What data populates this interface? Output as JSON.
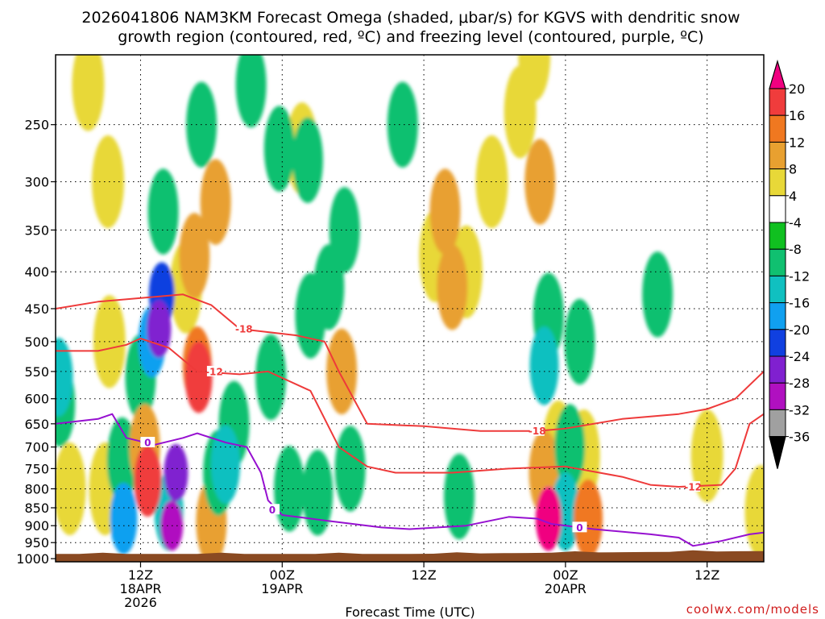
{
  "title": {
    "line1": "2026041806 NAM3KM Forecast Omega (shaded, μbar/s) for KGVS with dendritic snow",
    "line2": "growth region (contoured, red, ºC) and freezing level (contoured, purple, ºC)"
  },
  "credit": "coolwx.com/models",
  "colors": {
    "dendritic_contour": "#ee3a3a",
    "freezing_contour": "#9610d0",
    "ground": "#8a4a22",
    "frame": "#000000"
  },
  "chart_data": {
    "type": "heatmap",
    "title": "2026041806 NAM3KM Forecast Omega (shaded, μbar/s) for KGVS with dendritic snow growth region (contoured, red, ºC) and freezing level (contoured, purple, ºC)",
    "xlabel": "Forecast Time (UTC)",
    "ylabel": "",
    "y_axis": {
      "scale": "log-pressure",
      "ylim": [
        1000,
        200
      ],
      "tick_labels": [
        "250",
        "300",
        "350",
        "400",
        "450",
        "500",
        "550",
        "600",
        "650",
        "700",
        "750",
        "800",
        "850",
        "900",
        "950",
        "1000"
      ]
    },
    "x_axis": {
      "xlim_hours": [
        6,
        56
      ],
      "ticks": [
        {
          "hour": 12,
          "line1": "12Z",
          "line2": "18APR",
          "line3": "2026"
        },
        {
          "hour": 22,
          "line1": "00Z",
          "line2": "19APR",
          "line3": ""
        },
        {
          "hour": 32,
          "line1": "12Z",
          "line2": "",
          "line3": ""
        },
        {
          "hour": 42,
          "line1": "00Z",
          "line2": "20APR",
          "line3": ""
        },
        {
          "hour": 52,
          "line1": "12Z",
          "line2": "",
          "line3": ""
        }
      ]
    },
    "colorbar": {
      "labels": [
        "20",
        "16",
        "12",
        "8",
        "4",
        "-4",
        "-8",
        "-12",
        "-16",
        "-20",
        "-24",
        "-28",
        "-32",
        "-36"
      ],
      "colors": [
        "#f00080",
        "#f03c3c",
        "#f07820",
        "#e8a030",
        "#e8d838",
        "#ffffff",
        "#10c020",
        "#10c070",
        "#10c0c0",
        "#10a0f0",
        "#1040e0",
        "#8020d0",
        "#b010c0",
        "#a0a0a0",
        "#000000"
      ]
    },
    "omega_cells": [
      {
        "hour": 6.2,
        "p": 560,
        "omega": -12
      },
      {
        "hour": 6.3,
        "p": 610,
        "omega": -8
      },
      {
        "hour": 7.0,
        "p": 800,
        "omega": 4
      },
      {
        "hour": 8.3,
        "p": 220,
        "omega": 4
      },
      {
        "hour": 9.7,
        "p": 300,
        "omega": 4
      },
      {
        "hour": 9.8,
        "p": 500,
        "omega": 4
      },
      {
        "hour": 9.5,
        "p": 800,
        "omega": 4
      },
      {
        "hour": 10.7,
        "p": 730,
        "omega": -8
      },
      {
        "hour": 10.8,
        "p": 880,
        "omega": -16
      },
      {
        "hour": 12.0,
        "p": 560,
        "omega": -8
      },
      {
        "hour": 12.3,
        "p": 700,
        "omega": 8
      },
      {
        "hour": 12.5,
        "p": 780,
        "omega": 16
      },
      {
        "hour": 12.8,
        "p": 500,
        "omega": -16
      },
      {
        "hour": 13.3,
        "p": 480,
        "omega": -24
      },
      {
        "hour": 13.5,
        "p": 430,
        "omega": -20
      },
      {
        "hour": 13.6,
        "p": 330,
        "omega": -8
      },
      {
        "hour": 14.0,
        "p": 860,
        "omega": -12
      },
      {
        "hour": 14.2,
        "p": 900,
        "omega": -28
      },
      {
        "hour": 14.5,
        "p": 760,
        "omega": -24
      },
      {
        "hour": 15.2,
        "p": 420,
        "omega": 4
      },
      {
        "hour": 15.8,
        "p": 380,
        "omega": 8
      },
      {
        "hour": 16.0,
        "p": 540,
        "omega": 12
      },
      {
        "hour": 16.1,
        "p": 560,
        "omega": 16
      },
      {
        "hour": 16.3,
        "p": 250,
        "omega": -8
      },
      {
        "hour": 17.3,
        "p": 320,
        "omega": 8
      },
      {
        "hour": 17.0,
        "p": 890,
        "omega": 8
      },
      {
        "hour": 17.5,
        "p": 760,
        "omega": -8
      },
      {
        "hour": 18.0,
        "p": 740,
        "omega": -12
      },
      {
        "hour": 18.6,
        "p": 650,
        "omega": -8
      },
      {
        "hour": 19.8,
        "p": 220,
        "omega": -8
      },
      {
        "hour": 21.8,
        "p": 270,
        "omega": -8
      },
      {
        "hour": 21.2,
        "p": 560,
        "omega": -8
      },
      {
        "hour": 22.5,
        "p": 800,
        "omega": -8
      },
      {
        "hour": 23.4,
        "p": 270,
        "omega": 4
      },
      {
        "hour": 23.8,
        "p": 280,
        "omega": -8
      },
      {
        "hour": 24.0,
        "p": 460,
        "omega": -8
      },
      {
        "hour": 24.5,
        "p": 810,
        "omega": -8
      },
      {
        "hour": 25.3,
        "p": 420,
        "omega": -8
      },
      {
        "hour": 26.2,
        "p": 550,
        "omega": 8
      },
      {
        "hour": 26.4,
        "p": 350,
        "omega": -8
      },
      {
        "hour": 26.8,
        "p": 750,
        "omega": -8
      },
      {
        "hour": 30.5,
        "p": 250,
        "omega": -8
      },
      {
        "hour": 32.8,
        "p": 380,
        "omega": 4
      },
      {
        "hour": 33.5,
        "p": 330,
        "omega": 8
      },
      {
        "hour": 34.0,
        "p": 420,
        "omega": 8
      },
      {
        "hour": 34.5,
        "p": 820,
        "omega": -8
      },
      {
        "hour": 35.0,
        "p": 400,
        "omega": 4
      },
      {
        "hour": 36.8,
        "p": 300,
        "omega": 4
      },
      {
        "hour": 38.8,
        "p": 240,
        "omega": 4
      },
      {
        "hour": 39.8,
        "p": 200,
        "omega": 4
      },
      {
        "hour": 40.2,
        "p": 300,
        "omega": 8
      },
      {
        "hour": 40.5,
        "p": 540,
        "omega": -12
      },
      {
        "hour": 40.8,
        "p": 460,
        "omega": -8
      },
      {
        "hour": 40.5,
        "p": 760,
        "omega": 8
      },
      {
        "hour": 40.8,
        "p": 880,
        "omega": 20
      },
      {
        "hour": 41.5,
        "p": 700,
        "omega": 4
      },
      {
        "hour": 42.0,
        "p": 860,
        "omega": -12
      },
      {
        "hour": 42.3,
        "p": 700,
        "omega": -8
      },
      {
        "hour": 43.0,
        "p": 500,
        "omega": -8
      },
      {
        "hour": 43.3,
        "p": 720,
        "omega": 4
      },
      {
        "hour": 43.6,
        "p": 880,
        "omega": 12
      },
      {
        "hour": 48.5,
        "p": 430,
        "omega": -8
      },
      {
        "hour": 52.0,
        "p": 720,
        "omega": 4
      },
      {
        "hour": 55.8,
        "p": 860,
        "omega": 4
      }
    ],
    "series": [
      {
        "name": "-18",
        "kind": "dendritic",
        "points": [
          [
            6,
            450
          ],
          [
            9,
            440
          ],
          [
            15,
            430
          ],
          [
            17,
            445
          ],
          [
            19,
            480
          ],
          [
            23,
            490
          ],
          [
            25,
            500
          ],
          [
            26,
            550
          ],
          [
            28,
            650
          ],
          [
            32,
            655
          ],
          [
            36,
            665
          ],
          [
            40,
            665
          ],
          [
            42,
            660
          ],
          [
            46,
            640
          ],
          [
            50,
            630
          ],
          [
            52,
            620
          ],
          [
            54,
            600
          ],
          [
            56,
            550
          ]
        ]
      },
      {
        "name": "-12",
        "kind": "dendritic",
        "points": [
          [
            6,
            515
          ],
          [
            9,
            515
          ],
          [
            11,
            505
          ],
          [
            12,
            495
          ],
          [
            14,
            510
          ],
          [
            16,
            550
          ],
          [
            19,
            555
          ],
          [
            21,
            550
          ],
          [
            24,
            585
          ],
          [
            26,
            700
          ],
          [
            28,
            745
          ],
          [
            30,
            760
          ],
          [
            34,
            760
          ],
          [
            38,
            750
          ],
          [
            42,
            745
          ],
          [
            46,
            770
          ],
          [
            48,
            790
          ],
          [
            50,
            795
          ],
          [
            53,
            790
          ],
          [
            54,
            750
          ],
          [
            55,
            650
          ],
          [
            56,
            630
          ]
        ]
      },
      {
        "name": "0",
        "kind": "freezing",
        "points": [
          [
            6,
            650
          ],
          [
            9,
            640
          ],
          [
            10,
            630
          ],
          [
            11,
            680
          ],
          [
            13,
            695
          ],
          [
            15,
            680
          ],
          [
            16,
            670
          ],
          [
            18,
            690
          ],
          [
            19.5,
            700
          ],
          [
            20.5,
            760
          ],
          [
            21,
            830
          ],
          [
            22,
            870
          ],
          [
            25,
            885
          ],
          [
            29,
            905
          ],
          [
            31,
            910
          ],
          [
            35,
            900
          ],
          [
            38,
            875
          ],
          [
            40,
            880
          ],
          [
            41,
            895
          ],
          [
            44,
            910
          ],
          [
            48,
            925
          ],
          [
            50,
            935
          ],
          [
            51,
            960
          ],
          [
            53,
            945
          ],
          [
            55,
            925
          ],
          [
            56,
            920
          ]
        ]
      }
    ]
  }
}
